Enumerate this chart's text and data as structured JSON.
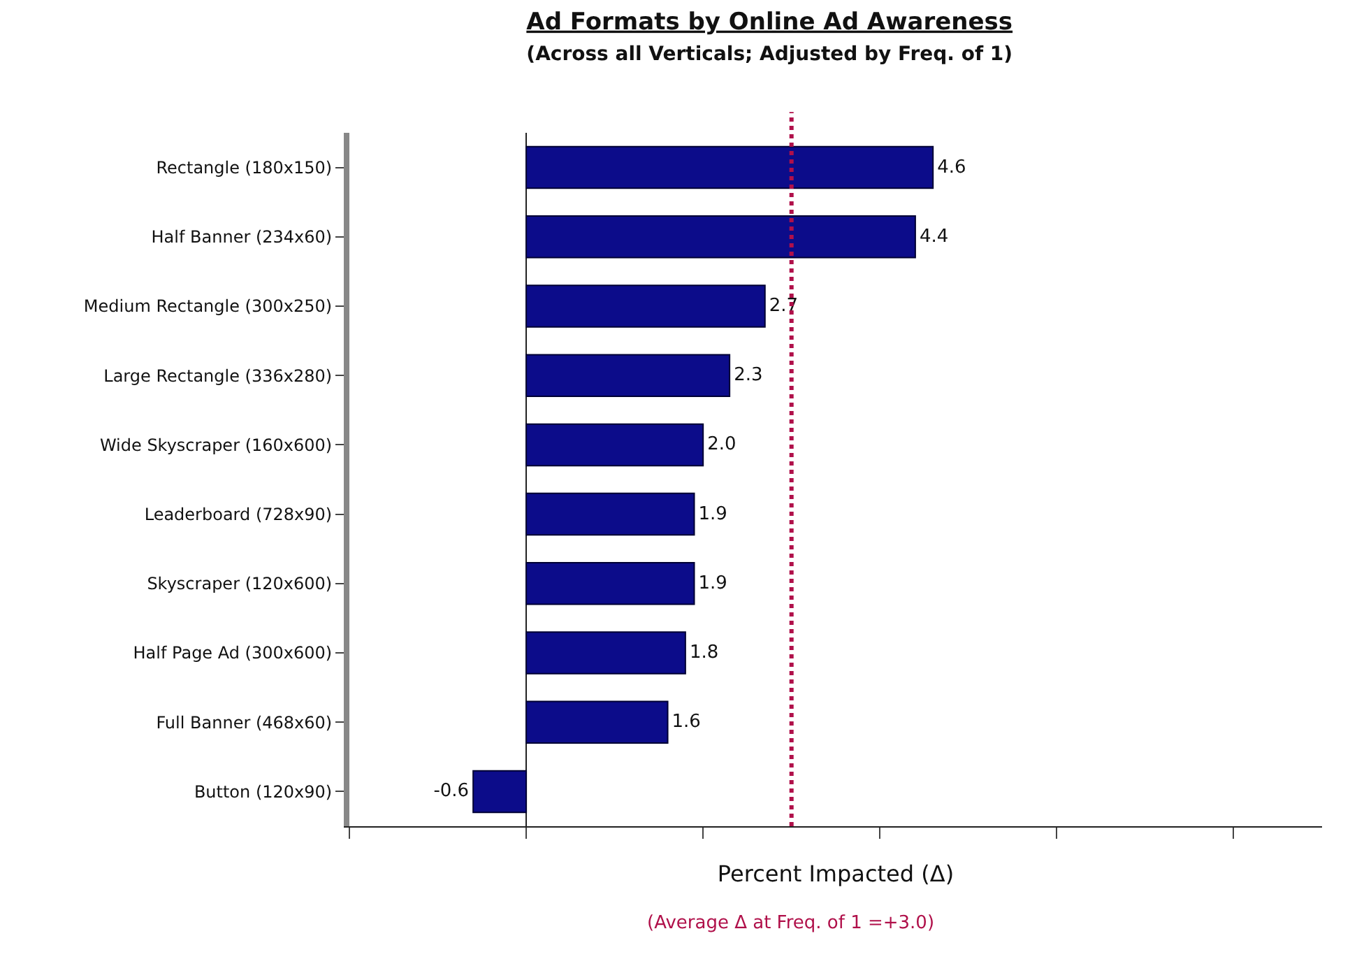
{
  "chart_data": {
    "type": "bar",
    "orientation": "horizontal",
    "title": "Ad Formats by Online Ad Awareness",
    "subtitle": "(Across all Verticals; Adjusted by Freq. of 1)",
    "xlabel": "Percent Impacted (Δ)",
    "categories": [
      "Rectangle (180x150)",
      "Half Banner (234x60)",
      "Medium Rectangle (300x250)",
      "Large Rectangle (336x280)",
      "Wide Skyscraper (160x600)",
      "Leaderboard (728x90)",
      "Skyscraper (120x600)",
      "Half Page Ad (300x600)",
      "Full Banner (468x60)",
      "Button (120x90)"
    ],
    "values": [
      4.6,
      4.4,
      2.7,
      2.3,
      2.0,
      1.9,
      1.9,
      1.8,
      1.6,
      -0.6
    ],
    "value_labels": [
      "4.6",
      "4.4",
      "2.7",
      "2.3",
      "2.0",
      "1.9",
      "1.9",
      "1.8",
      "1.6",
      "-0.6"
    ],
    "color": "#0c0c8a",
    "xlim": [
      -2,
      9
    ],
    "xticks": [
      {
        "value": -2,
        "label": null
      },
      {
        "value": 0,
        "label": null
      },
      {
        "value": 2,
        "label": null
      },
      {
        "value": 4,
        "label": null
      },
      {
        "value": 6,
        "label": null
      },
      {
        "value": 8,
        "label": null
      }
    ],
    "tick_labels": "y",
    "legend": false,
    "ref_lines": [
      {
        "axis": "x",
        "value": 3.0,
        "label": "(Average Δ at Freq. of 1 =+3.0)",
        "color": "#b0104a",
        "line_style": "dotted"
      }
    ]
  }
}
